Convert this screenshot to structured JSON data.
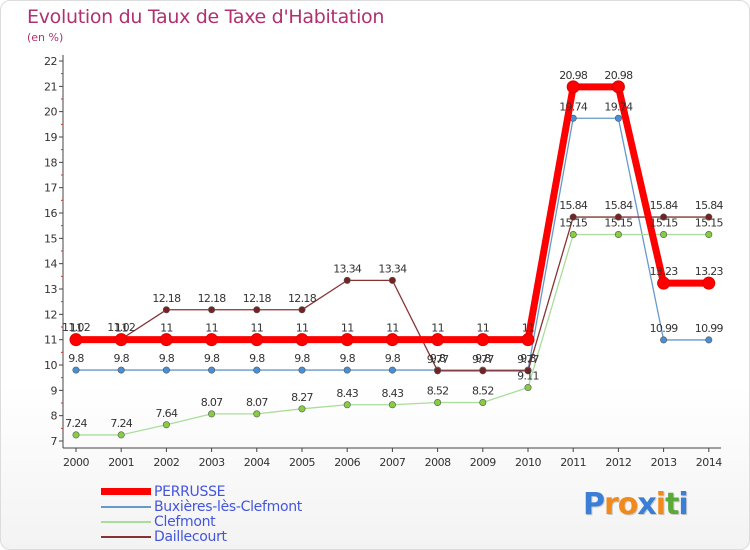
{
  "header": {
    "title": "Evolution du Taux de Taxe d'Habitation",
    "unit": "(en %)"
  },
  "logo": {
    "text": "Proxiti",
    "letters": [
      "P",
      "r",
      "o",
      "x",
      "i",
      "t",
      "i"
    ],
    "colors": [
      "#3a7fd5",
      "#f08a1c",
      "#f08a1c",
      "#3a7fd5",
      "#f08a1c",
      "#5aaa3a",
      "#3a7fd5"
    ]
  },
  "chart_data": {
    "type": "line",
    "title": "Evolution du Taux de Taxe d'Habitation",
    "ylabel": "(en %)",
    "xlabel": "",
    "ylim": [
      7,
      22
    ],
    "yticks": [
      7,
      8,
      9,
      10,
      11,
      12,
      13,
      14,
      15,
      16,
      17,
      18,
      19,
      20,
      21,
      22
    ],
    "grid": false,
    "legend_position": "bottom-left",
    "x": [
      "2000",
      "2001",
      "2002",
      "2003",
      "2004",
      "2005",
      "2006",
      "2007",
      "2008",
      "2009",
      "2010",
      "2011",
      "2012",
      "2013",
      "2014"
    ],
    "series": [
      {
        "name": "PERRUSSE",
        "color": "#ff0000",
        "marker_color": "#ff0000",
        "values": [
          11,
          11,
          11,
          11,
          11,
          11,
          11,
          11,
          11,
          11,
          11,
          20.98,
          20.98,
          13.23,
          13.23
        ],
        "labels": [
          "11",
          "11",
          "11",
          "11",
          "11",
          "11",
          "11",
          "11",
          "11",
          "11",
          "11",
          "20.98",
          "20.98",
          "13.23",
          "13.23"
        ]
      },
      {
        "name": "Buxières-lès-Clefmont",
        "color": "#6699cc",
        "marker_color": "#4a8fd6",
        "values": [
          9.8,
          9.8,
          9.8,
          9.8,
          9.8,
          9.8,
          9.8,
          9.8,
          9.8,
          9.8,
          9.8,
          19.74,
          19.74,
          10.99,
          10.99
        ],
        "labels": [
          "9.8",
          "9.8",
          "9.8",
          "9.8",
          "9.8",
          "9.8",
          "9.8",
          "9.8",
          "9.8",
          "9.8",
          "9.8",
          "19.74",
          "19.74",
          "10.99",
          "10.99"
        ]
      },
      {
        "name": "Clefmont",
        "color": "#aadd99",
        "marker_color": "#88cc44",
        "values": [
          7.24,
          7.24,
          7.64,
          8.07,
          8.07,
          8.27,
          8.43,
          8.43,
          8.52,
          8.52,
          9.11,
          15.15,
          15.15,
          15.15,
          15.15
        ],
        "labels": [
          "7.24",
          "7.24",
          "7.64",
          "8.07",
          "8.07",
          "8.27",
          "8.43",
          "8.43",
          "8.52",
          "8.52",
          "9.11",
          "15.15",
          "15.15",
          "15.15",
          "15.15"
        ]
      },
      {
        "name": "Daillecourt",
        "color": "#883333",
        "marker_color": "#772222",
        "values": [
          11.02,
          11.02,
          12.18,
          12.18,
          12.18,
          12.18,
          13.34,
          13.34,
          9.77,
          9.77,
          9.77,
          15.84,
          15.84,
          15.84,
          15.84
        ],
        "labels": [
          "11.02",
          "11.02",
          "12.18",
          "12.18",
          "12.18",
          "12.18",
          "13.34",
          "13.34",
          "9.77",
          "9.77",
          "9.77",
          "15.84",
          "15.84",
          "15.84",
          "15.84"
        ]
      }
    ]
  }
}
